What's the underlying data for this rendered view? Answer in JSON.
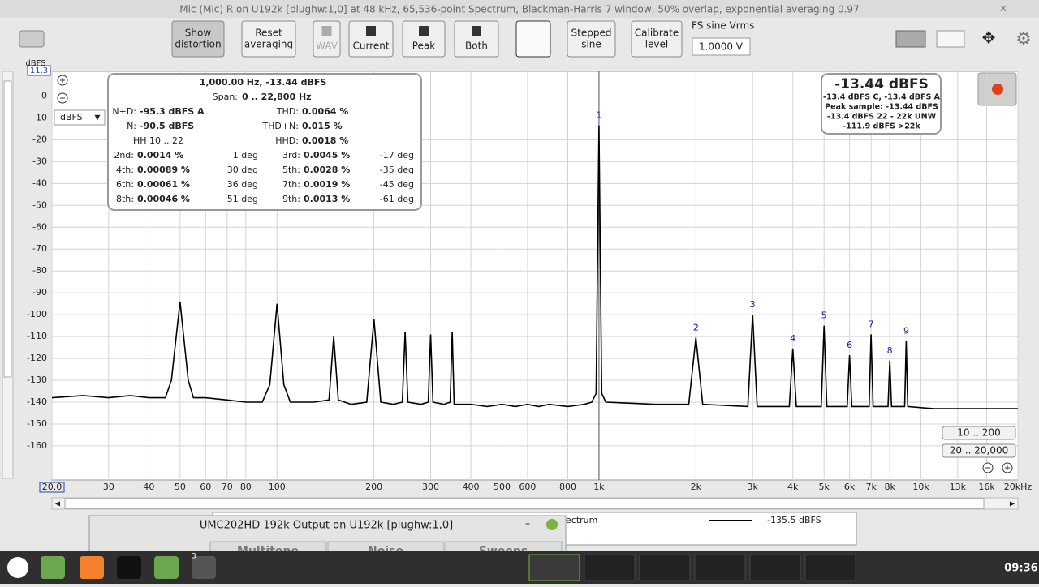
{
  "window_title": "Mic (Mic) R on U192k [plughw:1,0] at 48 kHz, 65,536-point Spectrum, Blackman-Harris 7 window, 50% overlap, exponential averaging 0.97",
  "toolbar": {
    "buttons": [
      [
        "Show",
        "distortion"
      ],
      [
        "Reset",
        "averaging"
      ],
      [
        "WAV"
      ],
      [
        "Current"
      ],
      [
        "Peak"
      ],
      [
        "Both"
      ],
      [
        "Stepped",
        "sine"
      ],
      [
        "Calibrate",
        "level"
      ]
    ],
    "fs_label": "FS sine Vrms",
    "fs_value": "1.0000 V"
  },
  "y_unit": "dBFS",
  "y_top_box": "11.3",
  "unit_select": "dBFS",
  "info": {
    "header": "1,000.00 Hz, -13.44 dBFS",
    "span_label": "Span:",
    "span_value": "0 .. 22,800 Hz",
    "hh_range": "HH 10 .. 22",
    "stats": [
      {
        "label": "N+D:",
        "value": "-95.3 dBFS A"
      },
      {
        "label": "THD:",
        "value": "0.0064 %"
      },
      {
        "label": "N:",
        "value": "-90.5 dBFS"
      },
      {
        "label": "THD+N:",
        "value": "0.015 %"
      },
      {
        "label": "HHD:",
        "value": "0.0018 %"
      }
    ],
    "harmonics": [
      {
        "label": "2nd:",
        "value": "0.0014 %",
        "phase": "1 deg"
      },
      {
        "label": "3rd:",
        "value": "0.0045 %",
        "phase": "-17 deg"
      },
      {
        "label": "4th:",
        "value": "0.00089 %",
        "phase": "30 deg"
      },
      {
        "label": "5th:",
        "value": "0.0028 %",
        "phase": "-35 deg"
      },
      {
        "label": "6th:",
        "value": "0.00061 %",
        "phase": "36 deg"
      },
      {
        "label": "7th:",
        "value": "0.0019 %",
        "phase": "-45 deg"
      },
      {
        "label": "8th:",
        "value": "0.00046 %",
        "phase": "51 deg"
      },
      {
        "label": "9th:",
        "value": "0.0013 %",
        "phase": "-61 deg"
      }
    ]
  },
  "summary": {
    "main": "-13.44 dBFS",
    "lines": [
      "-13.4 dBFS C, -13.4 dBFS A",
      "Peak sample: -13.44 dBFS",
      "-13.4 dBFS 22 - 22k UNW",
      "-111.9 dBFS >22k"
    ]
  },
  "range_buttons": [
    "10 .. 200",
    "20 .. 20,000"
  ],
  "chart_data": {
    "type": "line",
    "log_x": true,
    "grid": true,
    "xlim": [
      20,
      20000
    ],
    "ylim": [
      -175.6,
      11.3
    ],
    "yticks": [
      0,
      -10,
      -20,
      -30,
      -40,
      -50,
      -60,
      -70,
      -80,
      -90,
      -100,
      -110,
      -120,
      -130,
      -140,
      -150,
      -160
    ],
    "xticks": [
      {
        "value": 20,
        "label": "20.0"
      },
      30,
      40,
      50,
      60,
      70,
      80,
      100,
      200,
      300,
      400,
      500,
      600,
      800,
      {
        "value": 1000,
        "label": "1k"
      },
      {
        "value": 2000,
        "label": "2k"
      },
      {
        "value": 3000,
        "label": "3k"
      },
      {
        "value": 4000,
        "label": "4k"
      },
      {
        "value": 5000,
        "label": "5k"
      },
      {
        "value": 6000,
        "label": "6k"
      },
      {
        "value": 7000,
        "label": "7k"
      },
      {
        "value": 8000,
        "label": "8k"
      },
      {
        "value": 10000,
        "label": "10k"
      },
      {
        "value": 13000,
        "label": "13k"
      },
      {
        "value": 16000,
        "label": "16k"
      },
      {
        "value": 20000,
        "label": "20kHz"
      }
    ],
    "x": [
      20,
      25,
      30,
      35,
      40,
      45,
      47,
      50,
      53,
      55,
      60,
      70,
      80,
      90,
      95,
      100,
      105,
      110,
      130,
      145,
      150,
      155,
      170,
      190,
      200,
      210,
      230,
      245,
      250,
      255,
      280,
      295,
      300,
      305,
      330,
      345,
      350,
      355,
      400,
      450,
      500,
      550,
      600,
      650,
      700,
      800,
      900,
      950,
      980,
      1000,
      1020,
      1050,
      1500,
      1900,
      2000,
      2100,
      2900,
      3000,
      3100,
      3900,
      4000,
      4100,
      4900,
      5000,
      5100,
      5900,
      6000,
      6100,
      6900,
      7000,
      7100,
      7900,
      8000,
      8100,
      8900,
      9000,
      9100,
      11000,
      12000,
      14000,
      16000,
      18000,
      20000
    ],
    "series": [
      {
        "name": "-135.5 dBFS",
        "color": "#000000",
        "values": [
          -138,
          -137,
          -138,
          -137,
          -138,
          -138,
          -130,
          -94,
          -130,
          -138,
          -138,
          -139,
          -140,
          -140,
          -132,
          -95,
          -132,
          -140,
          -140,
          -139,
          -110,
          -139,
          -141,
          -140,
          -102,
          -140,
          -141,
          -140,
          -108,
          -140,
          -141,
          -140,
          -109,
          -140,
          -141,
          -140,
          -108,
          -141,
          -141,
          -142,
          -141,
          -142,
          -141,
          -142,
          -141,
          -142,
          -141,
          -140,
          -136,
          -13.4,
          -136,
          -140,
          -141,
          -141,
          -110.5,
          -141,
          -142,
          -100,
          -142,
          -142,
          -115.5,
          -142,
          -142,
          -105,
          -142,
          -142,
          -118.5,
          -142,
          -142,
          -109,
          -142,
          -142,
          -121,
          -142,
          -142,
          -112,
          -142,
          -143,
          -143,
          -143,
          -143,
          -143,
          -143
        ]
      }
    ],
    "harmonic_markers": [
      {
        "label": "1",
        "x": 1000
      },
      {
        "label": "2",
        "x": 2000
      },
      {
        "label": "3",
        "x": 3000
      },
      {
        "label": "4",
        "x": 4000
      },
      {
        "label": "5",
        "x": 5000
      },
      {
        "label": "6",
        "x": 6000
      },
      {
        "label": "7",
        "x": 7000
      },
      {
        "label": "8",
        "x": 8000
      },
      {
        "label": "9",
        "x": 9000
      }
    ]
  },
  "legend_partial": "ectrum",
  "second_window": {
    "title": "UMC202HD 192k Output on U192k [plughw:1,0]",
    "tabs": [
      "Multitone",
      "Noise",
      "Sweeps"
    ]
  },
  "taskbar": {
    "badge": "3",
    "clock": "09:36"
  }
}
